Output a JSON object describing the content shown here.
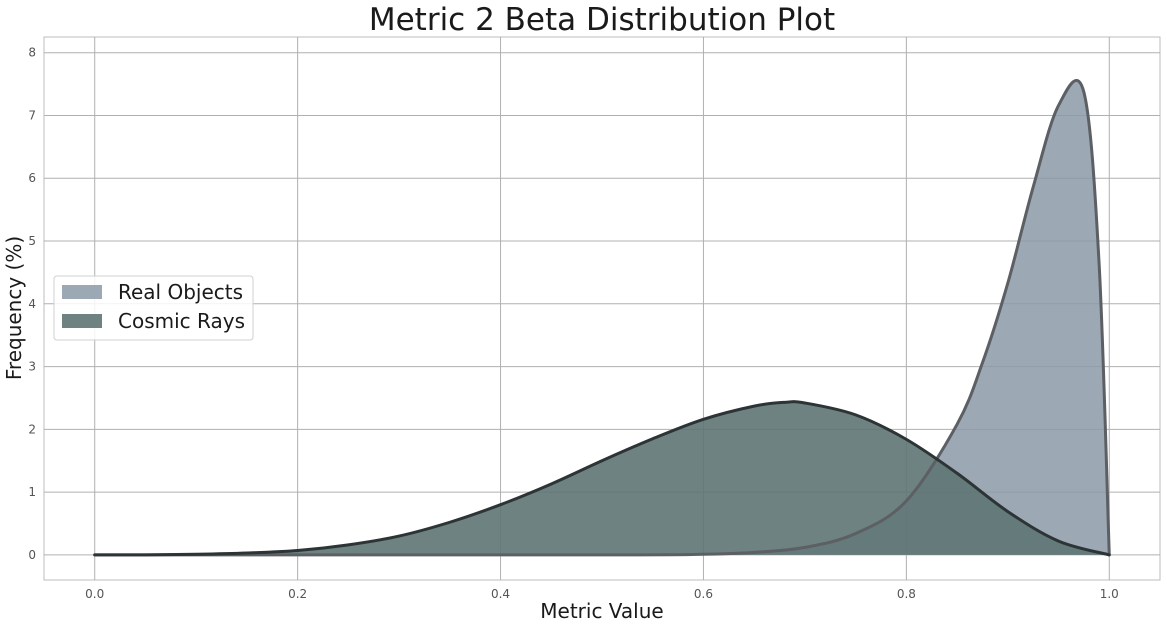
{
  "chart_data": {
    "type": "area",
    "title": "Metric 2 Beta Distribution Plot",
    "xlabel": "Metric Value",
    "ylabel": "Frequency (%)",
    "xlim": [
      -0.05,
      1.05
    ],
    "ylim": [
      -0.4,
      8.25
    ],
    "x_ticks": [
      0.0,
      0.2,
      0.4,
      0.6,
      0.8,
      1.0
    ],
    "x_tick_labels": [
      "0.0",
      "0.2",
      "0.4",
      "0.6",
      "0.8",
      "1.0"
    ],
    "y_ticks": [
      0,
      1,
      2,
      3,
      4,
      5,
      6,
      7,
      8
    ],
    "y_tick_labels": [
      "0",
      "1",
      "2",
      "3",
      "4",
      "5",
      "6",
      "7",
      "8"
    ],
    "grid": true,
    "legend_position": "center-left",
    "series": [
      {
        "name": "Real Objects",
        "color": "#8c99a8",
        "x": [
          0.0,
          0.5,
          0.6,
          0.65,
          0.7,
          0.75,
          0.8,
          0.85,
          0.875,
          0.9,
          0.925,
          0.95,
          0.975,
          0.99,
          1.0
        ],
        "y": [
          0.0,
          0.0,
          0.01,
          0.04,
          0.12,
          0.34,
          0.86,
          2.08,
          3.06,
          4.33,
          5.86,
          7.16,
          7.37,
          4.63,
          0.0
        ]
      },
      {
        "name": "Cosmic Rays",
        "color": "#5f7474",
        "x": [
          0.0,
          0.05,
          0.1,
          0.15,
          0.2,
          0.25,
          0.3,
          0.35,
          0.4,
          0.45,
          0.5,
          0.55,
          0.6,
          0.65,
          0.68,
          0.7,
          0.75,
          0.8,
          0.85,
          0.9,
          0.95,
          1.0
        ],
        "y": [
          0.0,
          0.0,
          0.01,
          0.03,
          0.07,
          0.16,
          0.3,
          0.52,
          0.8,
          1.13,
          1.5,
          1.85,
          2.16,
          2.37,
          2.43,
          2.42,
          2.23,
          1.84,
          1.3,
          0.69,
          0.22,
          0.0
        ]
      }
    ]
  }
}
